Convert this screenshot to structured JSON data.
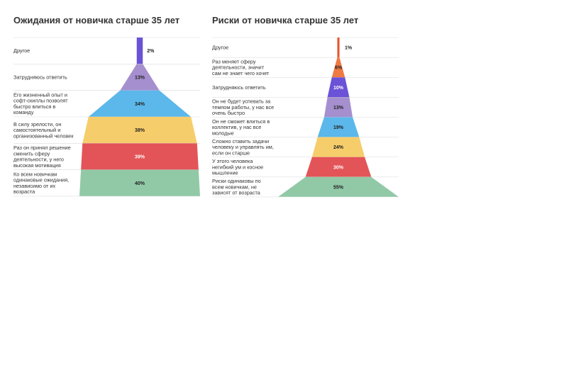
{
  "chart_data": [
    {
      "type": "bar",
      "title": "Ожидания от новичка старше 35 лет",
      "categories": [
        "Другое",
        "Затрудняюсь ответить",
        "Его жизненный опыт и софт-скиллы позволят быстро влиться в команду",
        "В силу зрелости, он самостоятельный и организованный человек",
        "Раз он принял решение сменить сферу деятельности, у него высокая мотивация",
        "Ко всем новичкам одинаковые ожидания, независимо от их возраста"
      ],
      "category_lines": [
        [
          "Другое"
        ],
        [
          "Затрудняюсь ответить"
        ],
        [
          "Его жизненный опыт и",
          "софт-скиллы позволят",
          "быстро влиться в",
          "команду"
        ],
        [
          "В силу зрелости, он",
          "самостоятельный и",
          "организованный человек"
        ],
        [
          "Раз он принял решение",
          "сменить сферу",
          "деятельности, у него",
          "высокая мотивация"
        ],
        [
          "Ко всем новичкам",
          "одинаковые ожидания,",
          "независимо от их",
          "возраста"
        ]
      ],
      "values": [
        2,
        13,
        34,
        38,
        39,
        40
      ],
      "value_labels": [
        "2%",
        "13%",
        "34%",
        "38%",
        "39%",
        "40%"
      ],
      "colors": [
        "#6b52d6",
        "#a58fce",
        "#5cb7ea",
        "#f6cd6b",
        "#e35458",
        "#91c9a7"
      ],
      "label_colors": [
        "#222222",
        "#222222",
        "#222222",
        "#222222",
        "#ffffff",
        "#222222"
      ]
    },
    {
      "type": "bar",
      "title": "Риски от новичка старше 35 лет",
      "categories": [
        "Другое",
        "Раз меняет сферу деятельности, значит сам не знает чего хочет",
        "Затрудняюсь ответить",
        "Он не будет успевать за темпом работы, у нас все очень быстро",
        "Он не сможет влиться в коллектив, у нас все молодые",
        "Сложно ставить задачи человеку и управлять им, если он старше",
        "У этого человека негибкий ум и косное мышление",
        "Риски одинаковы по всем новичкам, не зависят от возраста"
      ],
      "category_lines": [
        [
          "Другое"
        ],
        [
          "Раз меняет сферу",
          "деятельности, значит",
          "сам не знает чего хочет"
        ],
        [
          "Затрудняюсь ответить"
        ],
        [
          "Он не будет успевать за",
          "темпом работы, у нас все",
          "очень быстро"
        ],
        [
          "Он не сможет влиться в",
          "коллектив, у нас все",
          "молодые"
        ],
        [
          "Сложно ставить задачи",
          "человеку и управлять им,",
          "если он старше"
        ],
        [
          "У этого человека",
          "негибкий ум и косное",
          "мышление"
        ],
        [
          "Риски одинаковы по",
          "всем новичкам, не",
          "зависят от возраста"
        ]
      ],
      "values": [
        1,
        6,
        10,
        13,
        19,
        24,
        30,
        55
      ],
      "value_labels": [
        "1%",
        "6%",
        "10%",
        "13%",
        "19%",
        "24%",
        "30%",
        "55%"
      ],
      "colors": [
        "#e8542e",
        "#f07a44",
        "#6b52d6",
        "#a58fce",
        "#5cb7ea",
        "#f6cd6b",
        "#e35458",
        "#91c9a7"
      ],
      "label_colors": [
        "#222222",
        "#222222",
        "#ffffff",
        "#222222",
        "#222222",
        "#222222",
        "#ffffff",
        "#222222"
      ]
    }
  ]
}
